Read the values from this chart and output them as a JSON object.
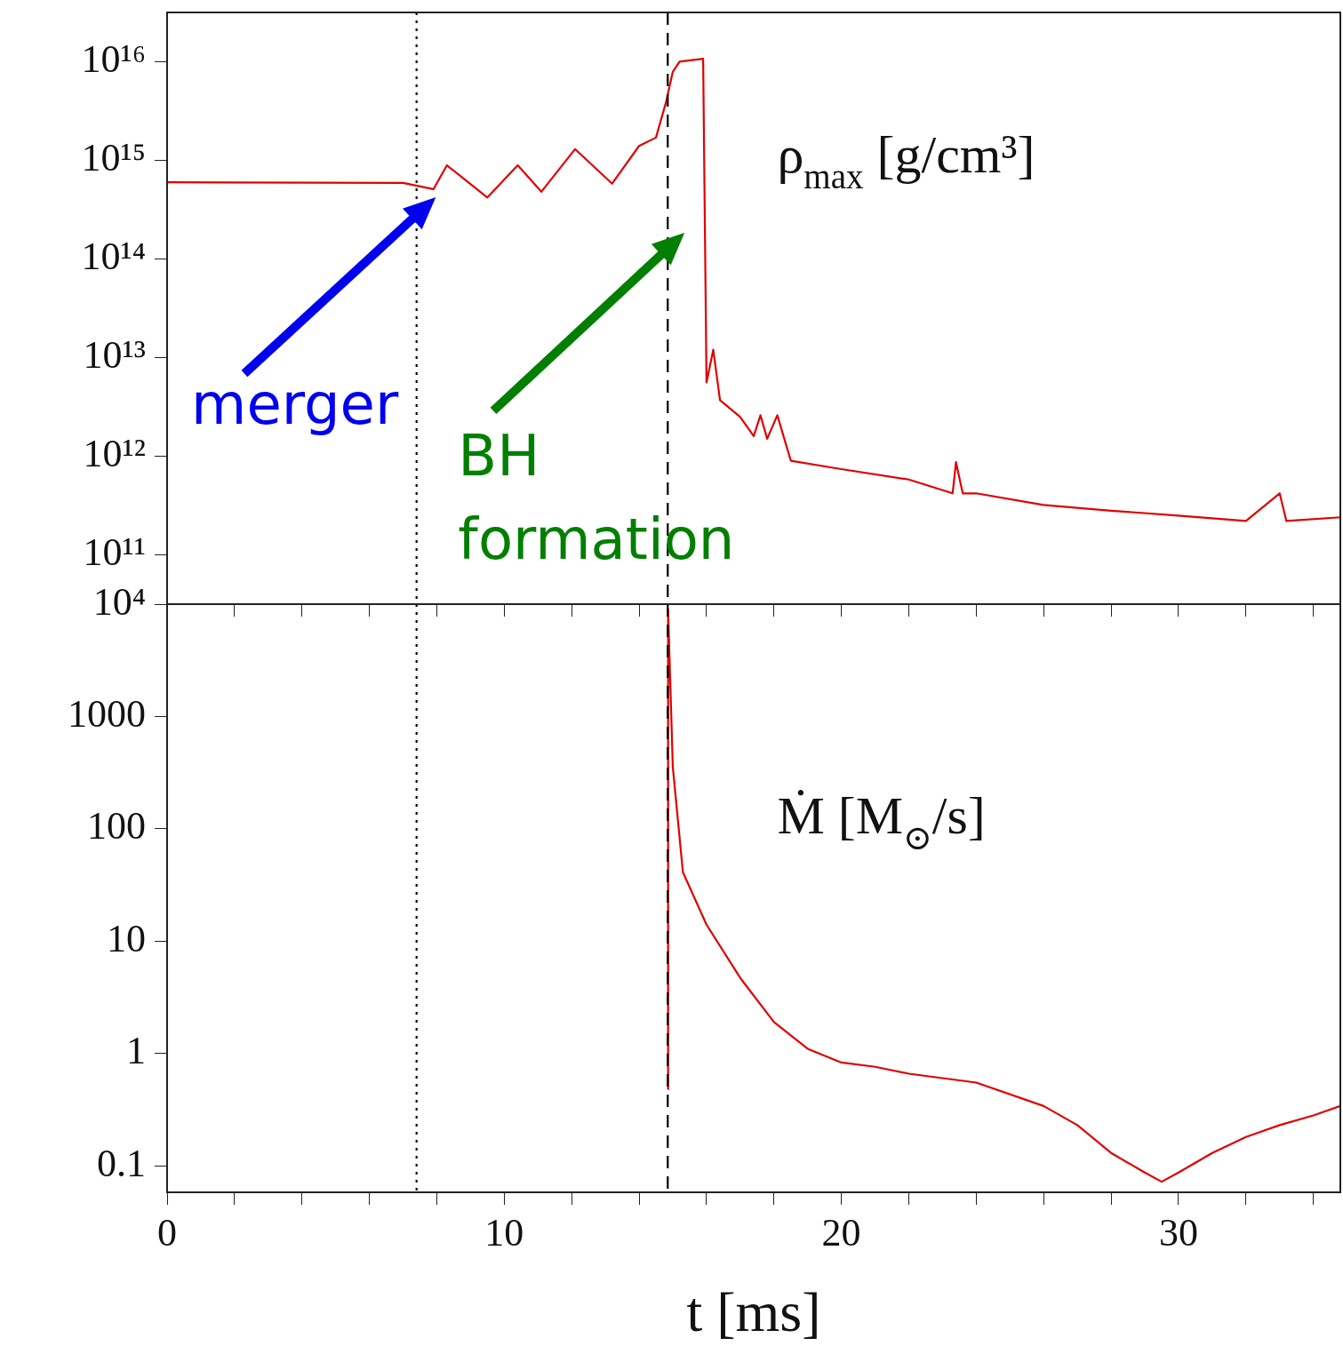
{
  "chart_data": [
    {
      "type": "line",
      "ylabel": "ρ$_{max}$ [g/cm³]",
      "log": "y",
      "grid": false,
      "legend": false,
      "marker": "none",
      "line_style": "solid",
      "tick_labels": "y",
      "xlim": [
        0,
        34.8
      ],
      "xticks": [
        0,
        {
          "value": 2,
          "label": null
        },
        {
          "value": 4,
          "label": null
        },
        {
          "value": 6,
          "label": null
        },
        {
          "value": 8,
          "label": null
        },
        10,
        {
          "value": 12,
          "label": null
        },
        {
          "value": 14,
          "label": null
        },
        {
          "value": 16,
          "label": null
        },
        {
          "value": 18,
          "label": null
        },
        20,
        {
          "value": 22,
          "label": null
        },
        {
          "value": 24,
          "label": null
        },
        {
          "value": 26,
          "label": null
        },
        {
          "value": 28,
          "label": null
        },
        30,
        {
          "value": 32,
          "label": null
        },
        {
          "value": 34,
          "label": null
        }
      ],
      "ylim": [
        31600000000.0,
        3.16e+16
      ],
      "yticks": [
        {
          "value": 100000000000.0,
          "label": "10¹¹"
        },
        {
          "value": 1000000000000.0,
          "label": "10¹²"
        },
        {
          "value": 10000000000000.0,
          "label": "10¹³"
        },
        {
          "value": 100000000000000.0,
          "label": "10¹⁴"
        },
        {
          "value": 1000000000000000.0,
          "label": "10¹⁵"
        },
        {
          "value": 1e+16,
          "label": "10¹⁶"
        }
      ],
      "ref_lines": [
        {
          "axis": "x",
          "value": 7.4,
          "label": null,
          "color": "#000000",
          "line_style": "dotted"
        },
        {
          "axis": "x",
          "value": 14.85,
          "label": null,
          "color": "#000000",
          "line_style": "dashed"
        }
      ],
      "annotations": [
        "merger",
        "BH formation"
      ],
      "series": [
        {
          "color": "#e00000",
          "x": [
            0,
            7,
            7.9,
            8.3,
            8.8,
            9.5,
            10.4,
            11.1,
            12.1,
            13.2,
            14,
            14.5,
            14.8,
            15,
            15.2,
            15.9,
            16.0,
            16.2,
            16.4,
            17,
            17.4,
            17.6,
            17.8,
            18.1,
            18.5,
            20,
            22,
            23.3,
            23.4,
            23.6,
            24,
            26,
            28,
            30,
            32,
            33,
            33.2,
            34.8
          ],
          "values": [
            600000000000000.0,
            590000000000000.0,
            510000000000000.0,
            890000000000000.0,
            650000000000000.0,
            420000000000000.0,
            890000000000000.0,
            480000000000000.0,
            1300000000000000.0,
            580000000000000.0,
            1400000000000000.0,
            1700000000000000.0,
            3900000000000000.0,
            7900000000000000.0,
            1e+16,
            1.07e+16,
            5600000000000.0,
            12000000000000.0,
            3700000000000.0,
            2500000000000.0,
            1600000000000.0,
            2600000000000.0,
            1500000000000.0,
            2600000000000.0,
            900000000000.0,
            740000000000.0,
            580000000000.0,
            420000000000.0,
            870000000000.0,
            420000000000.0,
            420000000000.0,
            320000000000.0,
            280000000000.0,
            250000000000.0,
            220000000000.0,
            420000000000.0,
            220000000000.0,
            240000000000.0
          ]
        }
      ]
    },
    {
      "type": "line",
      "ylabel": "Ṁ [M$_{⊙}$/s]",
      "xlabel": "t [ms]",
      "log": "y",
      "grid": false,
      "legend": false,
      "marker": "none",
      "line_style": "solid",
      "xlim": [
        0,
        34.8
      ],
      "xticks": [
        0,
        {
          "value": 2,
          "label": null
        },
        {
          "value": 4,
          "label": null
        },
        {
          "value": 6,
          "label": null
        },
        {
          "value": 8,
          "label": null
        },
        10,
        {
          "value": 12,
          "label": null
        },
        {
          "value": 14,
          "label": null
        },
        {
          "value": 16,
          "label": null
        },
        {
          "value": 18,
          "label": null
        },
        20,
        {
          "value": 22,
          "label": null
        },
        {
          "value": 24,
          "label": null
        },
        {
          "value": 26,
          "label": null
        },
        {
          "value": 28,
          "label": null
        },
        30,
        {
          "value": 32,
          "label": null
        },
        {
          "value": 34,
          "label": null
        }
      ],
      "ylim": [
        0.058,
        10000
      ],
      "yticks": [
        0.1,
        1,
        10,
        100,
        1000,
        {
          "value": 10000,
          "label": "10⁴"
        }
      ],
      "ref_lines": [
        {
          "axis": "x",
          "value": 7.4,
          "label": null,
          "color": "#000000",
          "line_style": "dotted"
        },
        {
          "axis": "x",
          "value": 14.85,
          "label": null,
          "color": "#000000",
          "line_style": "dashed"
        }
      ],
      "series": [
        {
          "color": "#e00000",
          "x": [
            14.85,
            14.86,
            15,
            15.3,
            16,
            17,
            18,
            19,
            20,
            21,
            22,
            24,
            26,
            27,
            28,
            29,
            29.5,
            30,
            31,
            32,
            33,
            34,
            34.8
          ],
          "values": [
            0.48,
            9000,
            355,
            41,
            14,
            4.7,
            1.9,
            1.1,
            0.83,
            0.76,
            0.66,
            0.55,
            0.34,
            0.23,
            0.13,
            0.087,
            0.072,
            0.087,
            0.13,
            0.18,
            0.23,
            0.28,
            0.34
          ]
        }
      ]
    }
  ]
}
